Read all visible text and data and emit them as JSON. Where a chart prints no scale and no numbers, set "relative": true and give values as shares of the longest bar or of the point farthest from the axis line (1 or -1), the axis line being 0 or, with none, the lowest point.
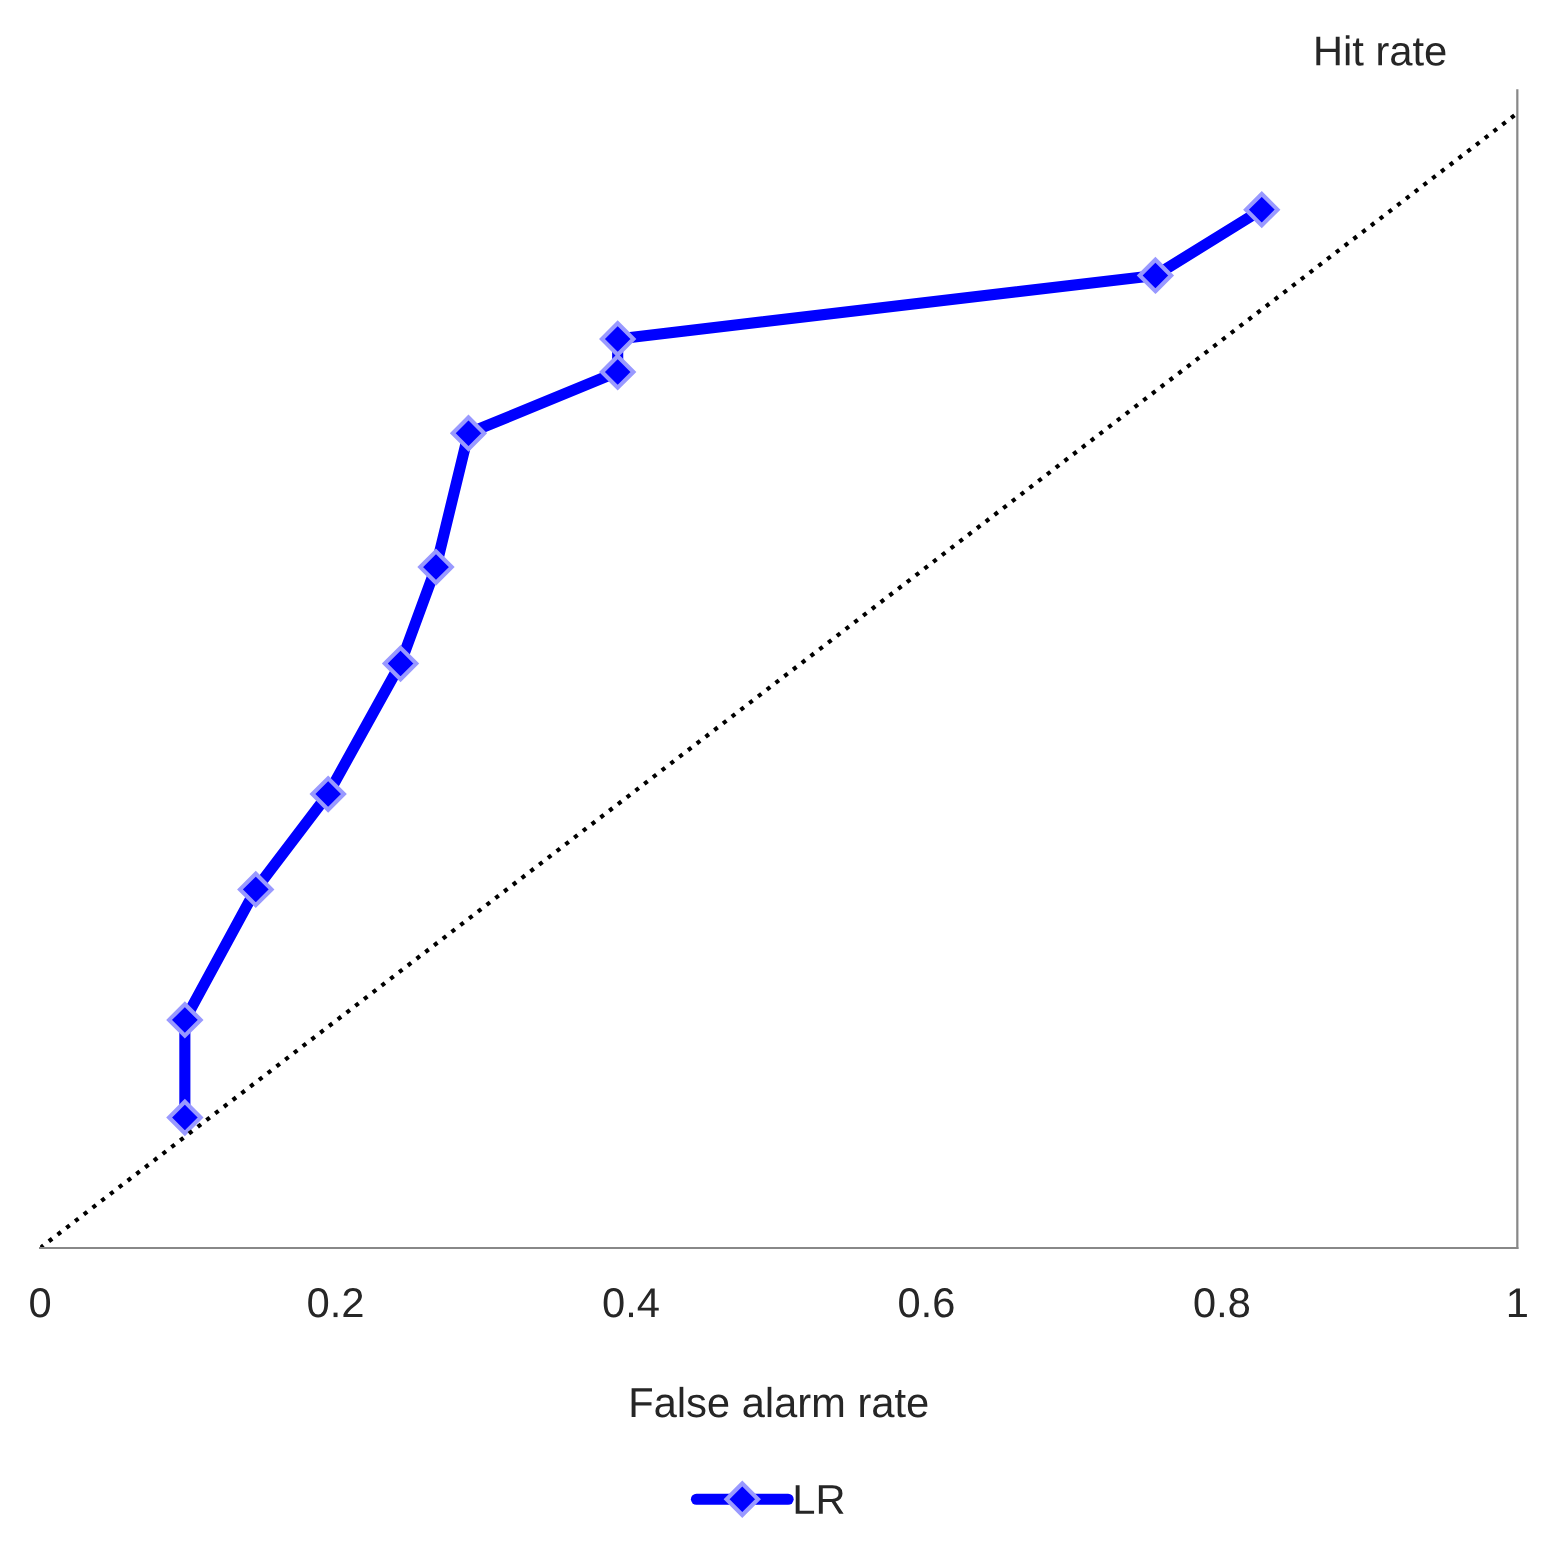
{
  "chart_data": {
    "type": "line",
    "relative": true,
    "xlabel": "False alarm rate",
    "ylabel": "Hit rate",
    "xlim": [
      0,
      1
    ],
    "xticks": [
      0,
      0.2,
      0.4,
      0.6,
      0.8,
      1
    ],
    "marker": "diamond",
    "line_style": "solid",
    "legend": "bottom",
    "series": [
      {
        "name": "LR",
        "color": "#0000ff",
        "x": [
          0.098,
          0.098,
          0.146,
          0.195,
          0.244,
          0.268,
          0.29,
          0.391,
          0.391,
          0.755,
          0.827
        ],
        "values": [
          0.115,
          0.201,
          0.316,
          0.4,
          0.515,
          0.6,
          0.718,
          0.772,
          0.801,
          0.857,
          0.915
        ]
      },
      {
        "color": "#000000",
        "x": [
          0,
          1
        ],
        "values": [
          0,
          1
        ],
        "marker": "none",
        "line_style": "dotted"
      }
    ]
  }
}
